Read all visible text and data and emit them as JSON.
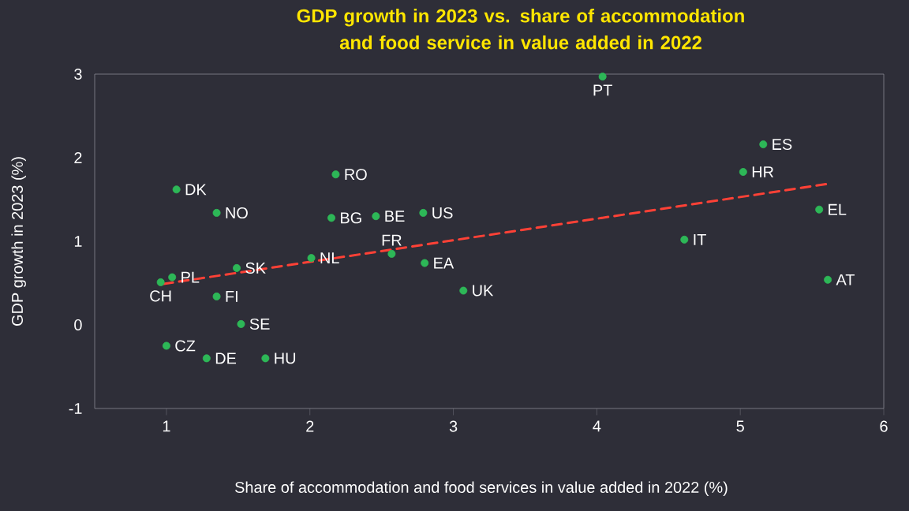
{
  "chart_data": {
    "type": "scatter",
    "title": "GDP growth in 2023 vs. share of accommodation and food service in value added in 2022",
    "xlabel": "Share of accommodation and food services in value added in 2022 (%)",
    "ylabel": "GDP growth in 2023 (%)",
    "xlim": [
      0.5,
      6
    ],
    "xticks": [
      1,
      2,
      3,
      4,
      5,
      6
    ],
    "ylim": [
      -1,
      3
    ],
    "yticks": [
      -1,
      0,
      1,
      2,
      3
    ],
    "grid": false,
    "series": [
      {
        "type": "scatter",
        "marker": "circle",
        "color": "#2db757",
        "x": [
          1.07,
          1.35,
          2.18,
          2.15,
          2.46,
          2.79,
          1.04,
          0.96,
          1.49,
          2.01,
          2.57,
          2.8,
          3.07,
          1.35,
          1.52,
          1.0,
          1.28,
          1.69,
          4.04,
          5.16,
          5.02,
          5.55,
          4.61,
          5.61
        ],
        "values": [
          1.62,
          1.34,
          1.8,
          1.28,
          1.3,
          1.34,
          0.57,
          0.51,
          0.68,
          0.8,
          0.85,
          0.74,
          0.41,
          0.34,
          0.01,
          -0.25,
          -0.4,
          -0.4,
          2.97,
          2.16,
          1.83,
          1.38,
          1.02,
          0.54
        ]
      },
      {
        "type": "line",
        "color": "#ff4136",
        "line_style": "dashed",
        "marker": "none",
        "x": [
          0.98,
          5.62
        ],
        "values": [
          0.49,
          1.69
        ]
      }
    ],
    "annotations": [
      {
        "text": "DK",
        "x": 1.07,
        "y": 1.62
      },
      {
        "text": "NO",
        "x": 1.35,
        "y": 1.34
      },
      {
        "text": "RO",
        "x": 2.18,
        "y": 1.8
      },
      {
        "text": "BG",
        "x": 2.15,
        "y": 1.28
      },
      {
        "text": "BE",
        "x": 2.46,
        "y": 1.3
      },
      {
        "text": "US",
        "x": 2.79,
        "y": 1.34
      },
      {
        "text": "PL",
        "x": 1.04,
        "y": 0.57
      },
      {
        "text": "CH",
        "x": 0.96,
        "y": 0.51
      },
      {
        "text": "SK",
        "x": 1.49,
        "y": 0.68
      },
      {
        "text": "NL",
        "x": 2.01,
        "y": 0.8
      },
      {
        "text": "FR",
        "x": 2.57,
        "y": 0.85
      },
      {
        "text": "EA",
        "x": 2.8,
        "y": 0.74
      },
      {
        "text": "UK",
        "x": 3.07,
        "y": 0.41
      },
      {
        "text": "FI",
        "x": 1.35,
        "y": 0.34
      },
      {
        "text": "SE",
        "x": 1.52,
        "y": 0.01
      },
      {
        "text": "CZ",
        "x": 1.0,
        "y": -0.25
      },
      {
        "text": "DE",
        "x": 1.28,
        "y": -0.4
      },
      {
        "text": "HU",
        "x": 1.69,
        "y": -0.4
      },
      {
        "text": "PT",
        "x": 4.04,
        "y": 2.97
      },
      {
        "text": "ES",
        "x": 5.16,
        "y": 2.16
      },
      {
        "text": "HR",
        "x": 5.02,
        "y": 1.83
      },
      {
        "text": "EL",
        "x": 5.55,
        "y": 1.38
      },
      {
        "text": "IT",
        "x": 4.61,
        "y": 1.02
      },
      {
        "text": "AT",
        "x": 5.61,
        "y": 0.54
      }
    ]
  }
}
